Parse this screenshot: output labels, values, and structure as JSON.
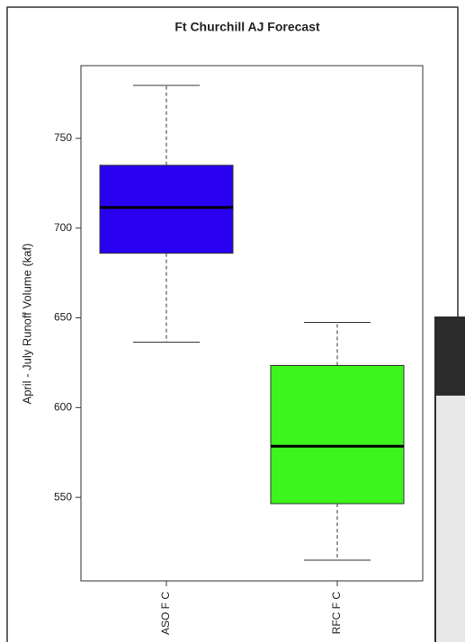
{
  "chart_data": {
    "type": "box",
    "title": "Ft Churchill AJ Forecast",
    "y_label": "April - July Runoff Volume (kaf)",
    "categories": [
      "ASO F C",
      "RFC F C"
    ],
    "boxes": [
      {
        "whisker_low": 636.5,
        "q1": 686,
        "median": 711.5,
        "q3": 735,
        "whisker_high": 779.5,
        "color": "#2a00f0"
      },
      {
        "whisker_low": 515,
        "q1": 546.5,
        "median": 578.5,
        "q3": 623.5,
        "whisker_high": 647.5,
        "color": "#3cf51c"
      }
    ],
    "ylim": [
      503.5,
      790.5
    ],
    "yticks": [
      550,
      600,
      650,
      700,
      750
    ]
  }
}
